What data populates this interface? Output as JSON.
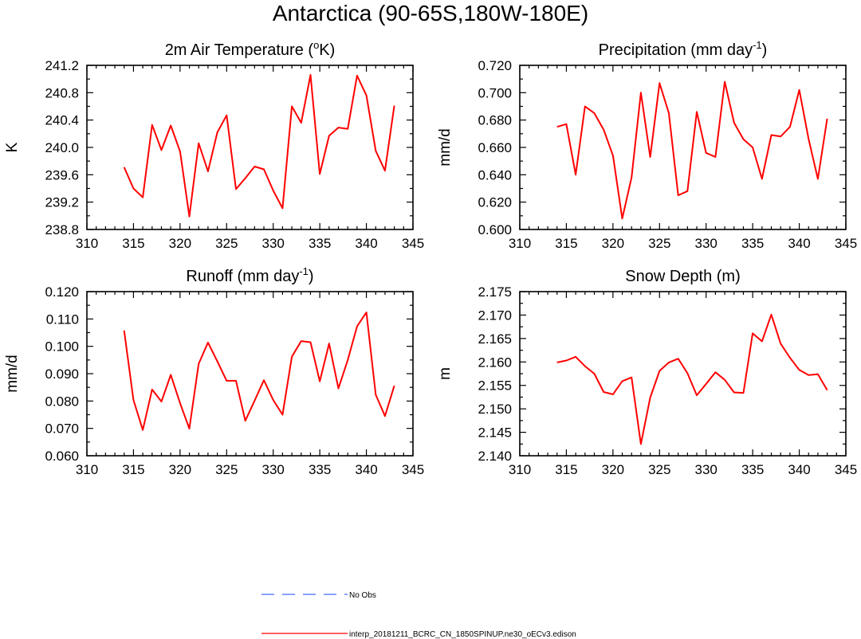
{
  "figure": {
    "title": "Antarctica (90-65S,180W-180E)",
    "legend": [
      {
        "label": "No Obs",
        "color": "#4169ff",
        "style": "dashed"
      },
      {
        "label": "interp_20181211_BCRC_CN_1850SPINUP.ne30_oECv3.edison",
        "color": "#ff0000",
        "style": "solid"
      }
    ]
  },
  "chart_data": [
    {
      "type": "line",
      "title": "2m Air Temperature (",
      "title_sup": "o",
      "title_after": "K)",
      "ylabel": "K",
      "xlim": [
        310,
        345
      ],
      "ylim": [
        238.8,
        241.2
      ],
      "xticks": [
        310,
        315,
        320,
        325,
        330,
        335,
        340,
        345
      ],
      "yticks": [
        "238.8",
        "239.2",
        "239.6",
        "240.0",
        "240.4",
        "240.8",
        "241.2"
      ],
      "x": [
        314,
        315,
        316,
        317,
        318,
        319,
        320,
        321,
        322,
        323,
        324,
        325,
        326,
        327,
        328,
        329,
        330,
        331,
        332,
        333,
        334,
        335,
        336,
        337,
        338,
        339,
        340,
        341,
        342,
        343
      ],
      "series": [
        {
          "name": "interp_20181211_BCRC_CN_1850SPINUP.ne30_oECv3.edison",
          "color": "#ff0000",
          "values": [
            239.71,
            239.4,
            239.27,
            240.33,
            239.96,
            240.32,
            239.94,
            238.99,
            240.06,
            239.65,
            240.22,
            240.47,
            239.39,
            239.55,
            239.72,
            239.68,
            239.37,
            239.11,
            240.6,
            240.36,
            241.06,
            239.61,
            240.17,
            240.29,
            240.27,
            241.05,
            240.76,
            239.95,
            239.66,
            240.61
          ]
        }
      ]
    },
    {
      "type": "line",
      "title": "Precipitation (mm day",
      "title_sup": "-1",
      "title_after": ")",
      "ylabel": "mm/d",
      "xlim": [
        310,
        345
      ],
      "ylim": [
        0.6,
        0.72
      ],
      "xticks": [
        310,
        315,
        320,
        325,
        330,
        335,
        340,
        345
      ],
      "yticks": [
        "0.600",
        "0.620",
        "0.640",
        "0.660",
        "0.680",
        "0.700",
        "0.720"
      ],
      "x": [
        314,
        315,
        316,
        317,
        318,
        319,
        320,
        321,
        322,
        323,
        324,
        325,
        326,
        327,
        328,
        329,
        330,
        331,
        332,
        333,
        334,
        335,
        336,
        337,
        338,
        339,
        340,
        341,
        342,
        343
      ],
      "series": [
        {
          "name": "interp_20181211_BCRC_CN_1850SPINUP.ne30_oECv3.edison",
          "color": "#ff0000",
          "values": [
            0.675,
            0.677,
            0.64,
            0.69,
            0.685,
            0.673,
            0.654,
            0.608,
            0.638,
            0.7,
            0.653,
            0.707,
            0.685,
            0.625,
            0.628,
            0.686,
            0.656,
            0.653,
            0.708,
            0.678,
            0.666,
            0.66,
            0.637,
            0.669,
            0.668,
            0.675,
            0.702,
            0.666,
            0.637,
            0.681
          ]
        }
      ]
    },
    {
      "type": "line",
      "title": "Runoff (mm day",
      "title_sup": "-1",
      "title_after": ")",
      "ylabel": "mm/d",
      "xlim": [
        310,
        345
      ],
      "ylim": [
        0.06,
        0.12
      ],
      "xticks": [
        310,
        315,
        320,
        325,
        330,
        335,
        340,
        345
      ],
      "yticks": [
        "0.060",
        "0.070",
        "0.080",
        "0.090",
        "0.100",
        "0.110",
        "0.120"
      ],
      "x": [
        314,
        315,
        316,
        317,
        318,
        319,
        320,
        321,
        322,
        323,
        324,
        325,
        326,
        327,
        328,
        329,
        330,
        331,
        332,
        333,
        334,
        335,
        336,
        337,
        338,
        339,
        340,
        341,
        342,
        343
      ],
      "series": [
        {
          "name": "interp_20181211_BCRC_CN_1850SPINUP.ne30_oECv3.edison",
          "color": "#ff0000",
          "values": [
            0.1058,
            0.0804,
            0.0694,
            0.0842,
            0.0798,
            0.0896,
            0.0792,
            0.0699,
            0.0936,
            0.1014,
            0.0945,
            0.0874,
            0.0874,
            0.0728,
            0.0801,
            0.0876,
            0.0804,
            0.075,
            0.0962,
            0.1019,
            0.1015,
            0.0872,
            0.101,
            0.0846,
            0.095,
            0.1073,
            0.1124,
            0.0823,
            0.0745,
            0.0856
          ]
        }
      ]
    },
    {
      "type": "line",
      "title": "Snow Depth (m)",
      "title_sup": "",
      "title_after": "",
      "ylabel": "m",
      "xlim": [
        310,
        345
      ],
      "ylim": [
        2.14,
        2.175
      ],
      "xticks": [
        310,
        315,
        320,
        325,
        330,
        335,
        340,
        345
      ],
      "yticks": [
        "2.140",
        "2.145",
        "2.150",
        "2.155",
        "2.160",
        "2.165",
        "2.170",
        "2.175"
      ],
      "x": [
        314,
        315,
        316,
        317,
        318,
        319,
        320,
        321,
        322,
        323,
        324,
        325,
        326,
        327,
        328,
        329,
        330,
        331,
        332,
        333,
        334,
        335,
        336,
        337,
        338,
        339,
        340,
        341,
        342,
        343
      ],
      "series": [
        {
          "name": "interp_20181211_BCRC_CN_1850SPINUP.ne30_oECv3.edison",
          "color": "#ff0000",
          "values": [
            2.1599,
            2.1603,
            2.1611,
            2.1591,
            2.1575,
            2.1536,
            2.1531,
            2.1559,
            2.1567,
            2.1425,
            2.1524,
            2.1581,
            2.1599,
            2.1607,
            2.1576,
            2.1529,
            2.1553,
            2.1578,
            2.1562,
            2.1535,
            2.1534,
            2.1661,
            2.1644,
            2.1701,
            2.1639,
            2.1609,
            2.1583,
            2.1572,
            2.1574,
            2.154
          ]
        }
      ]
    }
  ]
}
